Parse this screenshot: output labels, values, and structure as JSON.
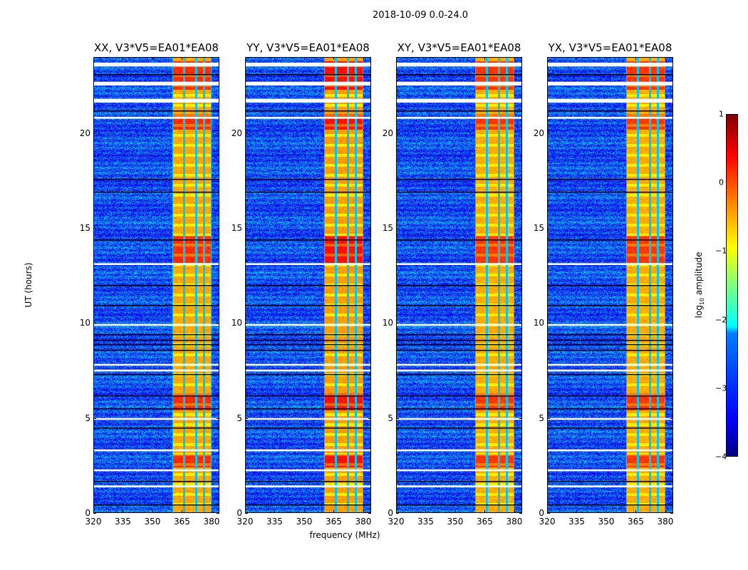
{
  "suptitle": "2018-10-09 0.0-24.0",
  "chart_data": {
    "type": "heatmap",
    "title": "2018-10-09 0.0-24.0",
    "xlabel": "frequency (MHz)",
    "ylabel": "UT (hours)",
    "xlim": [
      320,
      384
    ],
    "ylim": [
      0,
      24
    ],
    "xticks": [
      "320",
      "335",
      "350",
      "365",
      "380"
    ],
    "xtick_values": [
      320,
      335,
      350,
      365,
      380
    ],
    "yticks": [
      "0",
      "5",
      "10",
      "15",
      "20"
    ],
    "ytick_values": [
      0,
      5,
      10,
      15,
      20
    ],
    "panels": [
      {
        "title": "XX, V3*V5=EA01*EA08",
        "band_strength": 1.0
      },
      {
        "title": "YY, V3*V5=EA01*EA08",
        "band_strength": 1.15
      },
      {
        "title": "XY, V3*V5=EA01*EA08",
        "band_strength": 0.95
      },
      {
        "title": "YX, V3*V5=EA01*EA08",
        "band_strength": 0.95
      }
    ],
    "rfi_band_mhz": [
      360,
      380
    ],
    "band_channel_edges_mhz": [
      360,
      366,
      372,
      376,
      380
    ],
    "background_log10_amplitude": -3.0,
    "band_log10_amplitude": -0.8,
    "strong_ut_ranges": [
      [
        2.4,
        3.1
      ],
      [
        5.4,
        6.3
      ],
      [
        13.2,
        14.6
      ],
      [
        20.2,
        21.0
      ],
      [
        22.3,
        23.8
      ]
    ],
    "flagged_ut_ranges": [
      [
        23.5,
        23.7
      ],
      [
        22.5,
        22.7
      ],
      [
        21.6,
        21.8
      ],
      [
        20.75,
        20.85
      ],
      [
        13.05,
        13.15
      ],
      [
        9.85,
        9.95
      ],
      [
        7.75,
        7.85
      ],
      [
        7.45,
        7.55
      ],
      [
        4.9,
        5.0
      ],
      [
        3.25,
        3.35
      ],
      [
        2.2,
        2.3
      ],
      [
        1.35,
        1.45
      ]
    ],
    "dark_ut_lines": [
      23.1,
      21.2,
      17.6,
      16.9,
      14.4,
      12.0,
      10.95,
      9.4,
      9.1,
      8.9,
      8.6,
      7.3,
      6.2,
      5.5,
      4.5,
      1.7,
      0.45
    ],
    "colorbar": {
      "label": "log10 amplitude",
      "label_main": "log",
      "label_sub": "10",
      "label_rest": " amplitude",
      "range": [
        -4,
        1
      ],
      "ticks": [
        "1",
        "0",
        "−1",
        "−2",
        "−3",
        "−4"
      ],
      "tick_values": [
        1,
        0,
        -1,
        -2,
        -3,
        -4
      ],
      "colormap": "jet"
    }
  }
}
